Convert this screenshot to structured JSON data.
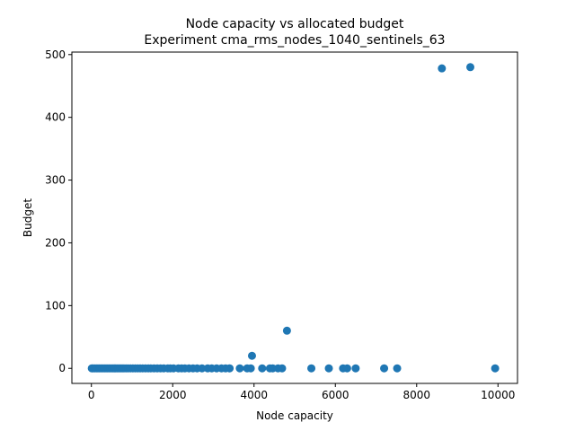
{
  "chart_data": {
    "type": "scatter",
    "title": "Node capacity vs allocated budget",
    "subtitle": "Experiment cma_rms_nodes_1040_sentinels_63",
    "xlabel": "Node capacity",
    "ylabel": "Budget",
    "xlim": [
      -480,
      10480
    ],
    "ylim": [
      -24,
      504
    ],
    "xticks": [
      0,
      2000,
      4000,
      6000,
      8000,
      10000
    ],
    "yticks": [
      0,
      100,
      200,
      300,
      400,
      500
    ],
    "grid": false,
    "marker_color": "#1f77b4",
    "points": [
      {
        "x": 8620,
        "y": 478
      },
      {
        "x": 9320,
        "y": 480
      },
      {
        "x": 4810,
        "y": 60
      },
      {
        "x": 3950,
        "y": 20
      },
      {
        "x": 9930,
        "y": 0
      },
      {
        "x": 7520,
        "y": 0
      },
      {
        "x": 7200,
        "y": 0
      },
      {
        "x": 6500,
        "y": 0
      },
      {
        "x": 6290,
        "y": 0
      },
      {
        "x": 6190,
        "y": 0
      },
      {
        "x": 5840,
        "y": 0
      },
      {
        "x": 5410,
        "y": 0
      },
      {
        "x": 4690,
        "y": 0
      },
      {
        "x": 4590,
        "y": 0
      },
      {
        "x": 4460,
        "y": 0
      },
      {
        "x": 4390,
        "y": 0
      },
      {
        "x": 4200,
        "y": 0
      },
      {
        "x": 3920,
        "y": 0
      },
      {
        "x": 3830,
        "y": 0
      },
      {
        "x": 3650,
        "y": 0
      },
      {
        "x": 3400,
        "y": 0
      },
      {
        "x": 3300,
        "y": 0
      },
      {
        "x": 3200,
        "y": 0
      },
      {
        "x": 3080,
        "y": 0
      },
      {
        "x": 2960,
        "y": 0
      },
      {
        "x": 2860,
        "y": 0
      },
      {
        "x": 2720,
        "y": 0
      },
      {
        "x": 2600,
        "y": 0
      },
      {
        "x": 2500,
        "y": 0
      },
      {
        "x": 2400,
        "y": 0
      },
      {
        "x": 2300,
        "y": 0
      },
      {
        "x": 2220,
        "y": 0
      },
      {
        "x": 2140,
        "y": 0
      },
      {
        "x": 2020,
        "y": 0
      },
      {
        "x": 1940,
        "y": 0
      },
      {
        "x": 1880,
        "y": 0
      },
      {
        "x": 1780,
        "y": 0
      },
      {
        "x": 1700,
        "y": 0
      },
      {
        "x": 1620,
        "y": 0
      },
      {
        "x": 1540,
        "y": 0
      },
      {
        "x": 1460,
        "y": 0
      },
      {
        "x": 1400,
        "y": 0
      },
      {
        "x": 1330,
        "y": 0
      },
      {
        "x": 1260,
        "y": 0
      },
      {
        "x": 1200,
        "y": 0
      },
      {
        "x": 1140,
        "y": 0
      },
      {
        "x": 1080,
        "y": 0
      },
      {
        "x": 1020,
        "y": 0
      },
      {
        "x": 960,
        "y": 0
      },
      {
        "x": 900,
        "y": 0
      },
      {
        "x": 850,
        "y": 0
      },
      {
        "x": 800,
        "y": 0
      },
      {
        "x": 760,
        "y": 0
      },
      {
        "x": 720,
        "y": 0
      },
      {
        "x": 680,
        "y": 0
      },
      {
        "x": 640,
        "y": 0
      },
      {
        "x": 600,
        "y": 0
      },
      {
        "x": 560,
        "y": 0
      },
      {
        "x": 520,
        "y": 0
      },
      {
        "x": 480,
        "y": 0
      },
      {
        "x": 440,
        "y": 0
      },
      {
        "x": 400,
        "y": 0
      },
      {
        "x": 360,
        "y": 0
      },
      {
        "x": 320,
        "y": 0
      },
      {
        "x": 280,
        "y": 0
      },
      {
        "x": 240,
        "y": 0
      },
      {
        "x": 200,
        "y": 0
      },
      {
        "x": 160,
        "y": 0
      },
      {
        "x": 120,
        "y": 0
      },
      {
        "x": 80,
        "y": 0
      },
      {
        "x": 40,
        "y": 0
      },
      {
        "x": 10,
        "y": 0
      }
    ]
  }
}
